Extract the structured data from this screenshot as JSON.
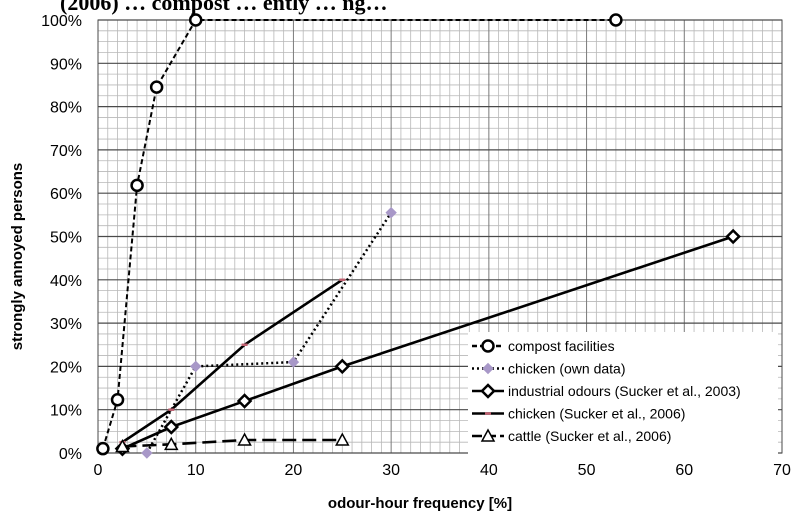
{
  "page": {
    "clipped_title": "(2006) … compost … ently … ng…"
  },
  "chart_data": {
    "type": "line",
    "title": "",
    "xlabel": "odour-hour frequency [%]",
    "ylabel": "strongly annoyed persons",
    "xlim": [
      0,
      70
    ],
    "ylim": [
      0,
      100
    ],
    "x_ticks": [
      0,
      10,
      20,
      30,
      40,
      50,
      60,
      70
    ],
    "y_ticks": [
      "0%",
      "10%",
      "20%",
      "30%",
      "40%",
      "50%",
      "60%",
      "70%",
      "80%",
      "90%",
      "100%"
    ],
    "grid": true,
    "legend_position": "bottom-right",
    "series": [
      {
        "name": "compost facilities",
        "line_style": "short-dash",
        "marker": "open-circle",
        "color": "#000000",
        "points": [
          [
            0.5,
            1
          ],
          [
            2,
            12.3
          ],
          [
            4,
            61.8
          ],
          [
            6,
            84.5
          ],
          [
            10,
            100
          ],
          [
            53,
            100
          ]
        ]
      },
      {
        "name": "chicken (own data)",
        "line_style": "dotted",
        "marker": "diamond",
        "color": "#000000",
        "marker_color": "#a898c8",
        "points": [
          [
            5,
            0
          ],
          [
            10,
            20
          ],
          [
            20,
            21
          ],
          [
            30,
            55.5
          ]
        ]
      },
      {
        "name": "industrial odours (Sucker et al., 2003)",
        "line_style": "solid",
        "marker": "filled-diamond",
        "color": "#000000",
        "points": [
          [
            2.5,
            1
          ],
          [
            7.5,
            6
          ],
          [
            15,
            12
          ],
          [
            25,
            20
          ],
          [
            65,
            50
          ]
        ]
      },
      {
        "name": "chicken (Sucker et al., 2006)",
        "line_style": "solid",
        "marker": "dash",
        "color": "#000000",
        "marker_color": "#c06070",
        "points": [
          [
            2.5,
            2.5
          ],
          [
            7.5,
            10
          ],
          [
            15,
            25
          ],
          [
            25,
            40
          ]
        ]
      },
      {
        "name": "cattle (Sucker et al., 2006)",
        "line_style": "long-dash",
        "marker": "open-triangle",
        "color": "#000000",
        "points": [
          [
            2.5,
            1.5
          ],
          [
            7.5,
            2
          ],
          [
            15,
            3
          ],
          [
            25,
            3
          ]
        ]
      }
    ]
  }
}
